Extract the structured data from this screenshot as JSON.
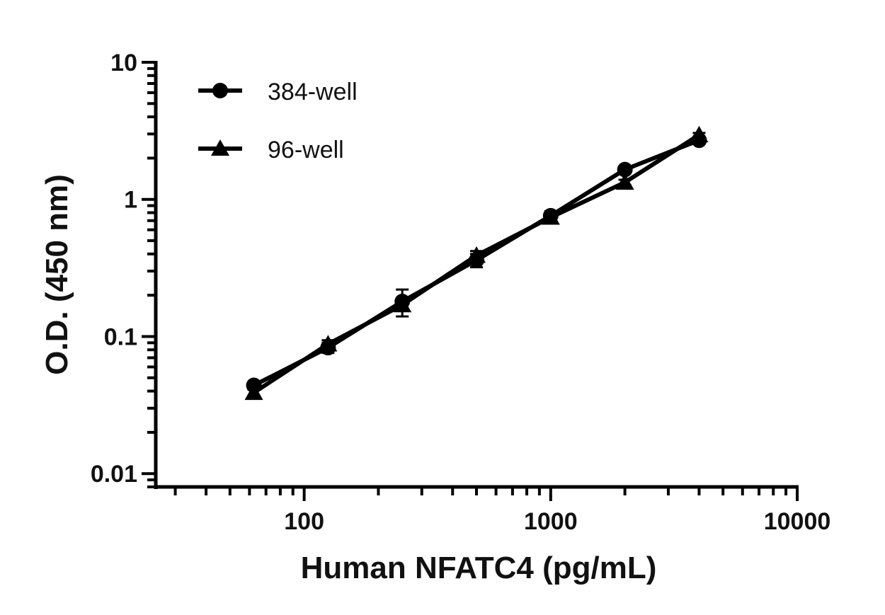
{
  "chart_data": {
    "type": "line",
    "title": "",
    "xlabel": "Human NFATC4 (pg/mL)",
    "ylabel": "O.D. (450 nm)",
    "x_scale": "log",
    "y_scale": "log",
    "xlim": [
      25,
      10000
    ],
    "ylim": [
      0.008,
      10
    ],
    "x_tick_labels": [
      "100",
      "1000",
      "10000"
    ],
    "y_tick_labels": [
      "0.01",
      "0.1",
      "1",
      "10"
    ],
    "grid": false,
    "legend_position": "top-left",
    "colors": {
      "series": "#000000",
      "axis": "#000000",
      "text": "#111111"
    },
    "series": [
      {
        "name": "384-well",
        "marker": "circle",
        "x": [
          62.5,
          125,
          250,
          500,
          1000,
          2000,
          4000
        ],
        "y": [
          0.044,
          0.083,
          0.18,
          0.36,
          0.76,
          1.65,
          2.7
        ],
        "err": [
          0.002,
          0.007,
          0.04,
          0.04,
          0.06,
          0.08,
          0.1
        ]
      },
      {
        "name": "96-well",
        "marker": "triangle",
        "x": [
          62.5,
          125,
          250,
          500,
          1000,
          2000,
          4000
        ],
        "y": [
          0.039,
          0.088,
          0.17,
          0.39,
          0.74,
          1.33,
          2.95
        ],
        "err": [
          0.002,
          0.006,
          0.015,
          0.03,
          0.05,
          0.06,
          0.1
        ]
      }
    ]
  }
}
